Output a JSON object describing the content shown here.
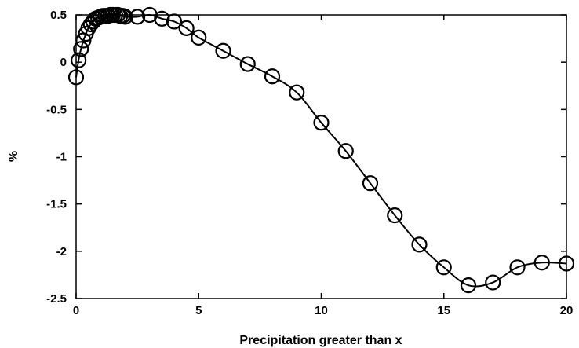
{
  "chart_data": {
    "type": "line",
    "title": "",
    "xlabel": "Precipitation greater than x",
    "ylabel": "%",
    "xlim": [
      0,
      20
    ],
    "ylim": [
      -2.5,
      0.5
    ],
    "xticks": [
      "0",
      "5",
      "10",
      "15",
      "20"
    ],
    "yticks": [
      "0.5",
      "0",
      "-0.5",
      "-1",
      "-1.5",
      "-2",
      "-2.5"
    ],
    "grid": false,
    "marker": "open-circle",
    "line_color": "#000000",
    "series": [
      {
        "x": [
          0,
          0.1,
          0.2,
          0.3,
          0.4,
          0.5,
          0.6,
          0.7,
          0.8,
          0.9,
          1.0,
          1.1,
          1.2,
          1.3,
          1.4,
          1.5,
          1.6,
          1.7,
          1.8,
          1.9,
          2.0,
          2.5,
          3,
          3.5,
          4,
          4.5,
          5,
          6,
          7,
          8,
          9,
          10,
          11,
          12,
          13,
          14,
          15,
          16,
          17,
          18,
          19,
          20
        ],
        "values": [
          -0.16,
          0.02,
          0.14,
          0.23,
          0.3,
          0.36,
          0.4,
          0.43,
          0.46,
          0.47,
          0.48,
          0.49,
          0.49,
          0.49,
          0.5,
          0.5,
          0.5,
          0.5,
          0.49,
          0.49,
          0.48,
          0.48,
          0.5,
          0.46,
          0.43,
          0.36,
          0.26,
          0.12,
          -0.02,
          -0.15,
          -0.32,
          -0.64,
          -0.94,
          -1.28,
          -1.62,
          -1.93,
          -2.17,
          -2.36,
          -2.33,
          -2.17,
          -2.12,
          -2.13
        ]
      }
    ]
  }
}
